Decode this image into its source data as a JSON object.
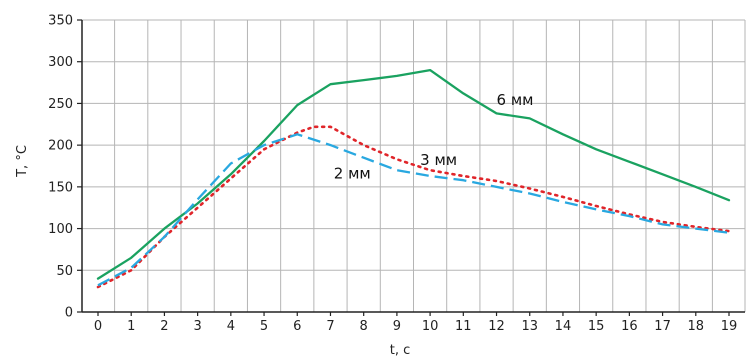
{
  "chart_data": {
    "type": "line",
    "xlabel": "t, c",
    "ylabel": "T, °C",
    "xlim": [
      0,
      19
    ],
    "ylim": [
      0,
      350
    ],
    "x_ticks": [
      0,
      1,
      2,
      3,
      4,
      5,
      6,
      7,
      8,
      9,
      10,
      11,
      12,
      13,
      14,
      15,
      16,
      17,
      18,
      19
    ],
    "y_ticks": [
      0,
      50,
      100,
      150,
      200,
      250,
      300,
      350
    ],
    "grid": true,
    "legend": "none",
    "series": [
      {
        "name": "6 мм",
        "color": "#1aa260",
        "dash": "solid",
        "x": [
          0,
          1,
          2,
          3,
          4,
          5,
          6,
          7,
          8,
          9,
          10,
          11,
          12,
          13,
          14,
          15,
          16,
          17,
          18,
          19
        ],
        "y": [
          40,
          65,
          100,
          130,
          165,
          205,
          248,
          273,
          278,
          283,
          290,
          262,
          238,
          232,
          213,
          195,
          180,
          165,
          150,
          134
        ]
      },
      {
        "name": "3 мм",
        "color": "#e0252a",
        "dash": "dotted",
        "x": [
          0,
          1,
          2,
          3,
          4,
          5,
          6,
          6.5,
          7,
          8,
          9,
          10,
          11,
          12,
          13,
          14,
          15,
          16,
          17,
          18,
          19
        ],
        "y": [
          30,
          50,
          90,
          125,
          160,
          195,
          215,
          222,
          222,
          200,
          183,
          170,
          163,
          157,
          148,
          138,
          127,
          117,
          108,
          102,
          97
        ]
      },
      {
        "name": "2 мм",
        "color": "#29a8e0",
        "dash": "dashed",
        "x": [
          0,
          1,
          2,
          3,
          4,
          5,
          6,
          7,
          8,
          9,
          10,
          11,
          12,
          13,
          14,
          15,
          16,
          17,
          18,
          19
        ],
        "y": [
          32,
          53,
          90,
          135,
          178,
          200,
          213,
          200,
          185,
          170,
          163,
          158,
          150,
          142,
          132,
          123,
          115,
          105,
          100,
          95
        ]
      }
    ],
    "annotations": [
      {
        "text": "6 мм",
        "x": 12.0,
        "y": 248
      },
      {
        "text": "3 мм",
        "x": 9.7,
        "y": 176
      },
      {
        "text": "2 мм",
        "x": 7.1,
        "y": 160
      }
    ]
  }
}
